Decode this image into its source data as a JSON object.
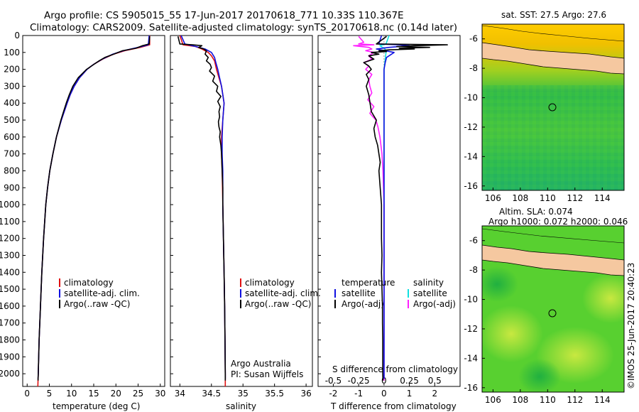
{
  "header": {
    "line1": "Argo profile: CS 5905015_55 17-Jun-2017 20170618_771 10.33S 110.367E",
    "line2": "Climatology: CARS2009. Satellite-adjusted climatology: synTS_20170618.nc (0.14d later)"
  },
  "colors": {
    "climatology": "#e01010",
    "satellite": "#1010e0",
    "argo": "#000000",
    "salinity_satellite": "#10e0e0",
    "salinity_argo": "#ff20ff",
    "land": "#f5c8a0"
  },
  "chart_data": [
    {
      "type": "line",
      "id": "temperature-panel",
      "xlabel": "temperature (deg C)",
      "ylabel": "",
      "xlim": [
        -1,
        31
      ],
      "ylim": [
        0,
        2075
      ],
      "xticks": [
        "0",
        "5",
        "10",
        "15",
        "20",
        "25",
        "30"
      ],
      "yticks": [
        "0",
        "100",
        "200",
        "300",
        "400",
        "500",
        "600",
        "700",
        "800",
        "900",
        "1000",
        "1100",
        "1200",
        "1300",
        "1400",
        "1500",
        "1600",
        "1700",
        "1800",
        "1900",
        "2000"
      ],
      "legend": [
        "climatology",
        "satellite-adj. clim.",
        "Argo(..raw -QC)"
      ],
      "series": [
        {
          "name": "climatology",
          "depth": [
            0,
            55,
            70,
            90,
            110,
            140,
            170,
            200,
            250,
            300,
            350,
            400,
            500,
            600,
            700,
            800,
            900,
            1000,
            1200,
            1400,
            1600,
            1800,
            2000,
            2075
          ],
          "values": [
            27.6,
            27.6,
            25.5,
            22,
            19.5,
            17,
            15,
            13.5,
            11.8,
            10.6,
            9.7,
            9,
            7.7,
            6.6,
            5.8,
            5.1,
            4.6,
            4.2,
            3.7,
            3.3,
            3,
            2.7,
            2.5,
            2.4
          ]
        },
        {
          "name": "satellite-adj. clim.",
          "depth": [
            0,
            55,
            70,
            90,
            110,
            140,
            170,
            200,
            250,
            300,
            350,
            400,
            500,
            600,
            700,
            800,
            900,
            1000,
            1200,
            1400,
            1600,
            1800,
            2000,
            2030
          ],
          "values": [
            27.5,
            27.3,
            25,
            21.7,
            19.3,
            16.9,
            15,
            13.5,
            11.8,
            10.6,
            9.7,
            9,
            7.7,
            6.6,
            5.8,
            5.1,
            4.6,
            4.2,
            3.7,
            3.3,
            3,
            2.7,
            2.5,
            2.45
          ]
        },
        {
          "name": "Argo(..raw -QC)",
          "depth": [
            5,
            50,
            60,
            75,
            90,
            110,
            130,
            150,
            180,
            200,
            250,
            300,
            350,
            400,
            450,
            500,
            600,
            700,
            800,
            900,
            1000,
            1200,
            1400,
            1600,
            1800,
            1950,
            2000,
            2040
          ],
          "values": [
            27.6,
            27.5,
            26,
            24.5,
            21.5,
            19.5,
            17.5,
            16.2,
            14.5,
            13.4,
            11.5,
            10.3,
            9.5,
            8.8,
            8.2,
            7.6,
            6.6,
            5.8,
            5.1,
            4.6,
            4.2,
            3.7,
            3.3,
            3,
            2.7,
            2.55,
            2.5,
            2.45
          ]
        }
      ],
      "annotation": []
    },
    {
      "type": "line",
      "id": "salinity-panel",
      "xlabel": "salinity",
      "xlim": [
        33.85,
        36.1
      ],
      "ylim": [
        0,
        2075
      ],
      "xticks": [
        "34",
        "34.5",
        "35",
        "35.5",
        "36"
      ],
      "legend": [
        "climatology",
        "satellite-adj. clim.",
        "Argo(..raw -QC)"
      ],
      "series": [
        {
          "name": "climatology",
          "depth": [
            0,
            55,
            65,
            80,
            100,
            120,
            150,
            200,
            250,
            300,
            400,
            500,
            600,
            700,
            800,
            1000,
            1200,
            1400,
            1600,
            1800,
            2000,
            2075
          ],
          "values": [
            34.0,
            34.05,
            34.25,
            34.35,
            34.45,
            34.5,
            34.55,
            34.58,
            34.62,
            34.66,
            34.7,
            34.68,
            34.66,
            34.66,
            34.67,
            34.68,
            34.69,
            34.7,
            34.71,
            34.715,
            34.72,
            34.72
          ]
        },
        {
          "name": "satellite-adj. clim.",
          "depth": [
            0,
            50,
            65,
            80,
            100,
            130,
            160,
            200,
            250,
            300,
            400,
            500,
            600,
            700,
            800,
            1000,
            1200,
            1400,
            1600,
            1800,
            2000,
            2030
          ],
          "values": [
            34.02,
            34.08,
            34.25,
            34.4,
            34.5,
            34.55,
            34.57,
            34.6,
            34.63,
            34.66,
            34.7,
            34.68,
            34.67,
            34.67,
            34.68,
            34.68,
            34.69,
            34.7,
            34.71,
            34.715,
            34.72,
            34.72
          ]
        },
        {
          "name": "Argo(..raw -QC)",
          "depth": [
            5,
            50,
            55,
            60,
            70,
            80,
            90,
            110,
            130,
            150,
            170,
            190,
            210,
            240,
            270,
            300,
            330,
            360,
            390,
            420,
            450,
            480,
            510,
            540,
            570,
            600,
            650,
            700,
            800,
            900,
            1000,
            1200,
            1400,
            1600,
            1800,
            2000,
            2040
          ],
          "values": [
            33.97,
            34.0,
            34.2,
            34.35,
            34.3,
            34.38,
            34.42,
            34.4,
            34.45,
            34.42,
            34.48,
            34.5,
            34.47,
            34.55,
            34.52,
            34.6,
            34.58,
            34.65,
            34.6,
            34.64,
            34.62,
            34.63,
            34.61,
            34.62,
            34.64,
            34.63,
            34.65,
            34.66,
            34.67,
            34.68,
            34.68,
            34.69,
            34.7,
            34.71,
            34.715,
            34.72,
            34.72
          ]
        }
      ],
      "annotation": [
        "Argo Australia",
        "PI: Susan Wijffels"
      ]
    },
    {
      "type": "line",
      "id": "difference-panel",
      "xlabel": "T difference from climatology",
      "xlabel_top": "S difference from climatology",
      "xlim_T": [
        -2.6,
        3.0
      ],
      "xticks_T": [
        "-2",
        "-1",
        "0",
        "1",
        "2"
      ],
      "xticks_S": [
        "-0.5",
        "-0.25",
        "0",
        "0.25",
        "0.5"
      ],
      "ylim": [
        0,
        2075
      ],
      "legend_T": [
        "temperature",
        "satellite",
        "Argo(-adj)"
      ],
      "legend_S": [
        "salinity",
        "satellite",
        "Argo(-adj)"
      ],
      "series": [
        {
          "name": "temperature satellite",
          "depth": [
            0,
            50,
            55,
            60,
            70,
            80,
            100,
            130,
            160,
            200,
            300,
            500,
            800,
            1200,
            1600,
            2000,
            2030
          ],
          "values": [
            -0.1,
            -0.2,
            0.6,
            1.0,
            0.2,
            -0.3,
            0.4,
            0.1,
            0.05,
            0.0,
            0.0,
            0.0,
            0.0,
            0.0,
            0.0,
            0.0,
            0.0
          ]
        },
        {
          "name": "temperature Argo(-adj)",
          "depth": [
            5,
            50,
            55,
            60,
            65,
            70,
            75,
            80,
            85,
            90,
            95,
            100,
            110,
            120,
            140,
            160,
            180,
            200,
            230,
            260,
            300,
            350,
            400,
            450,
            500,
            550,
            600,
            650,
            700,
            750,
            800,
            900,
            1000,
            1100,
            1200,
            1300,
            1400,
            1500,
            1600,
            1700,
            1800,
            1900,
            2000,
            2040
          ],
          "values": [
            0.1,
            -0.3,
            2.5,
            1.2,
            0.5,
            1.8,
            0.6,
            1.2,
            0.2,
            -0.2,
            0.1,
            -0.5,
            -0.2,
            -0.6,
            -0.4,
            -0.8,
            -0.6,
            -0.5,
            -0.7,
            -0.6,
            -0.7,
            -0.6,
            -0.55,
            -0.5,
            -0.3,
            -0.4,
            -0.35,
            -0.25,
            -0.2,
            -0.15,
            -0.2,
            -0.15,
            -0.1,
            -0.1,
            -0.1,
            -0.08,
            -0.1,
            -0.08,
            -0.06,
            -0.06,
            -0.05,
            -0.05,
            -0.05,
            -0.04
          ]
        },
        {
          "name": "salinity satellite",
          "depth": [
            0,
            50,
            60,
            80,
            100,
            150,
            200,
            300,
            500,
            800,
            1200,
            1600,
            2000,
            2030
          ],
          "values": [
            0.05,
            0.02,
            -0.04,
            0.01,
            0.02,
            0.01,
            0.0,
            0.0,
            0.0,
            0.0,
            0.0,
            0.0,
            0.0,
            0.0
          ]
        },
        {
          "name": "salinity Argo(-adj)",
          "depth": [
            5,
            40,
            50,
            55,
            60,
            70,
            80,
            90,
            100,
            120,
            140,
            160,
            180,
            200,
            230,
            260,
            300,
            340,
            380,
            420,
            460,
            500,
            540,
            600,
            700,
            800,
            1000,
            1200,
            1600,
            2000,
            2040
          ],
          "values": [
            -0.25,
            -0.2,
            -0.25,
            -0.1,
            -0.3,
            -0.15,
            -0.12,
            -0.18,
            -0.1,
            -0.15,
            -0.12,
            -0.2,
            -0.15,
            -0.18,
            -0.12,
            -0.15,
            -0.14,
            -0.12,
            -0.16,
            -0.1,
            -0.14,
            -0.08,
            -0.06,
            -0.04,
            -0.02,
            -0.01,
            0.0,
            0.0,
            0.0,
            0.0,
            0.0
          ]
        }
      ]
    },
    {
      "type": "heatmap",
      "id": "sst-map",
      "title": "sat. SST: 27.5 Argo: 27.6",
      "xticks": [
        "106",
        "108",
        "110",
        "112",
        "114"
      ],
      "yticks": [
        "-6",
        "-8",
        "-10",
        "-12",
        "-14",
        "-16"
      ],
      "xlim": [
        105.2,
        115.6
      ],
      "ylim": [
        -16.3,
        -5.0
      ],
      "profile_location": [
        110.367,
        -10.33
      ]
    },
    {
      "type": "heatmap",
      "id": "sla-map",
      "title": "Altim. SLA: 0.074",
      "subtitle": "Argo h1000: 0.072 h2000: 0.046",
      "xticks": [
        "106",
        "108",
        "110",
        "112",
        "114"
      ],
      "yticks": [
        "-6",
        "-8",
        "-10",
        "-12",
        "-14",
        "-16"
      ],
      "xlim": [
        105.2,
        115.6
      ],
      "ylim": [
        -16.3,
        -5.0
      ],
      "profile_location": [
        110.367,
        -10.33
      ]
    }
  ],
  "footer": {
    "credit": "©IMOS 25-Jun-2017 20:40:23"
  }
}
